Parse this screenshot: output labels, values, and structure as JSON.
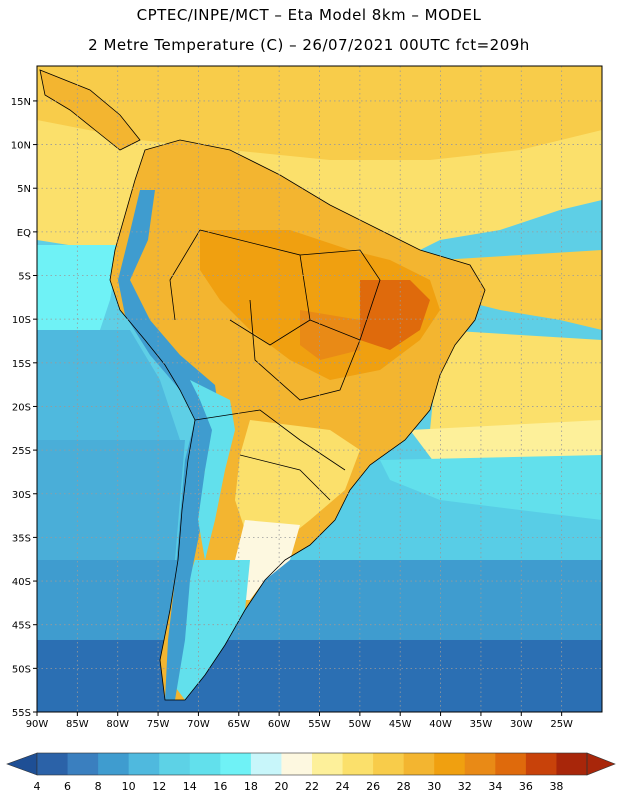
{
  "header": {
    "line1": "CPTEC/INPE/MCT –  Eta Model 8km – MODEL",
    "line2": "2 Metre Temperature (C) – 26/07/2021 00UTC fct=209h"
  },
  "map": {
    "lat_labels": [
      "15N",
      "10N",
      "5N",
      "EQ",
      "5S",
      "10S",
      "15S",
      "20S",
      "25S",
      "30S",
      "35S",
      "40S",
      "45S",
      "50S",
      "55S"
    ],
    "lon_labels": [
      "90W",
      "85W",
      "80W",
      "75W",
      "70W",
      "65W",
      "60W",
      "55W",
      "50W",
      "45W",
      "40W",
      "35W",
      "30W",
      "25W"
    ],
    "lat_range": [
      -55,
      19
    ],
    "lon_range": [
      -90,
      -20
    ],
    "gridlines": true
  },
  "colorbar": {
    "labels": [
      "4",
      "6",
      "8",
      "10",
      "12",
      "14",
      "16",
      "18",
      "20",
      "22",
      "24",
      "26",
      "28",
      "30",
      "32",
      "34",
      "36",
      "38"
    ],
    "colors": [
      "#2b62a8",
      "#3a7fbf",
      "#3f9ccf",
      "#4fb9de",
      "#5dd2e6",
      "#62e0ec",
      "#6ff2f6",
      "#c8f6fa",
      "#fdf8e0",
      "#fdf09a",
      "#fbe06b",
      "#f8cc4a",
      "#f3b530",
      "#f0a010",
      "#e98a16",
      "#df6a0c",
      "#c8420a",
      "#a8260a"
    ],
    "underflow_color": "#1e4f95",
    "overflow_color": "#a8260a"
  }
}
